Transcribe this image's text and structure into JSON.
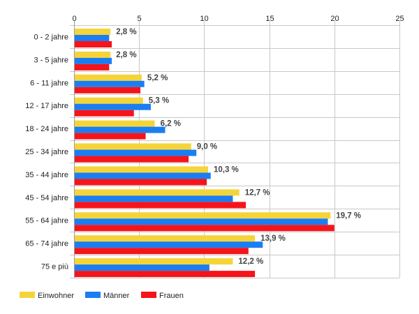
{
  "chart_data": {
    "type": "bar",
    "orientation": "horizontal",
    "categories": [
      "0 - 2 jahre",
      "3 - 5 jahre",
      "6 - 11 jahre",
      "12 - 17 jahre",
      "18 - 24 jahre",
      "25 - 34 jahre",
      "35 - 44 jahre",
      "45 - 54 jahre",
      "55 - 64 jahre",
      "65 - 74 jahre",
      "75 e più"
    ],
    "series": [
      {
        "name": "Einwohner",
        "color": "#f5d43a",
        "values": [
          2.8,
          2.8,
          5.2,
          5.3,
          6.2,
          9.0,
          10.3,
          12.7,
          19.7,
          13.9,
          12.2
        ],
        "labels": [
          "2,8 %",
          "2,8 %",
          "5,2 %",
          "5,3 %",
          "6,2 %",
          "9,0 %",
          "10,3 %",
          "12,7 %",
          "19,7 %",
          "13,9 %",
          "12,2 %"
        ]
      },
      {
        "name": "Männer",
        "color": "#1a7ef2",
        "values": [
          2.7,
          2.9,
          5.4,
          5.9,
          7.0,
          9.4,
          10.5,
          12.2,
          19.5,
          14.5,
          10.4
        ]
      },
      {
        "name": "Frauen",
        "color": "#f5141a",
        "values": [
          2.9,
          2.7,
          5.1,
          4.6,
          5.5,
          8.8,
          10.2,
          13.2,
          20.0,
          13.4,
          13.9
        ]
      }
    ],
    "xlim": [
      0,
      25
    ],
    "xticks": [
      0,
      5,
      10,
      15,
      20,
      25
    ],
    "tick_labels": [
      "0",
      "5",
      "10",
      "15",
      "20",
      "25"
    ],
    "axis_position": "top",
    "grid": true,
    "legend_position": "bottom-left",
    "title": "",
    "xlabel": "",
    "ylabel": ""
  }
}
